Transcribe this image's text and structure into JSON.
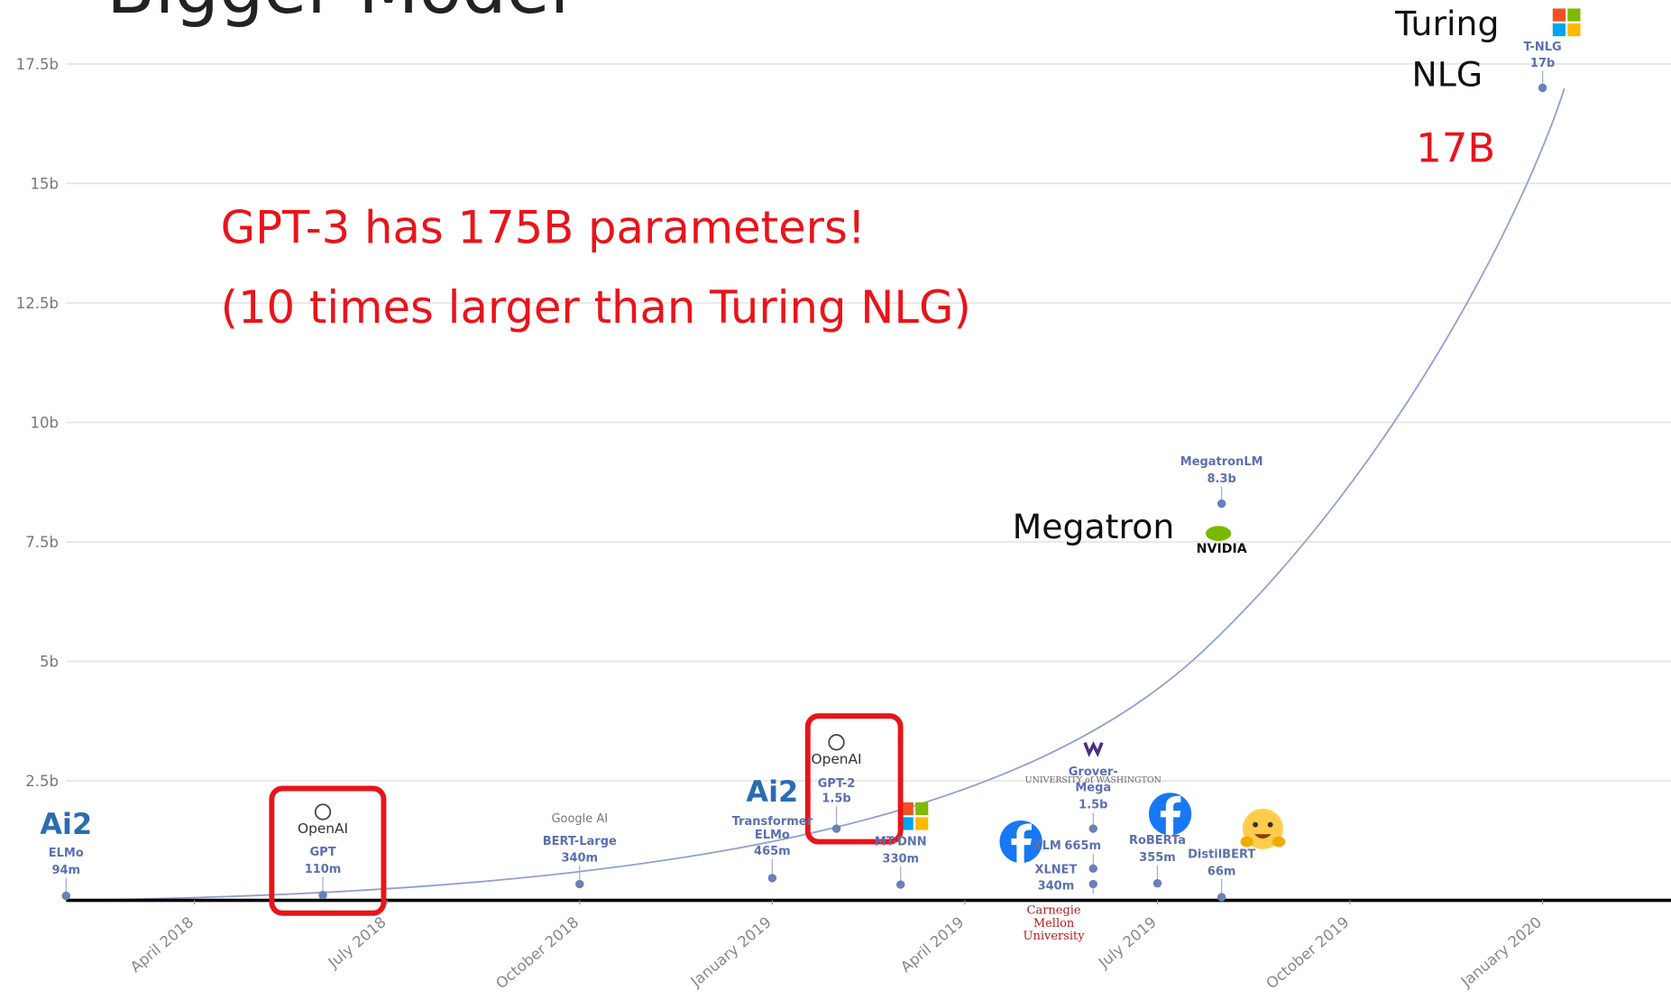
{
  "chart_data": {
    "type": "scatter",
    "title": "Bigger Model",
    "annotations": [
      "GPT-3 has 175B parameters!",
      "(10 times larger than Turing NLG)",
      "Turing",
      "NLG",
      "17B",
      "Megatron"
    ],
    "labels": [
      "ELMo",
      "GPT",
      "BERT-Large",
      "Transformer ELMo",
      "GPT-2",
      "MT-DNN",
      "XLM",
      "Grover-Mega",
      "XLNET",
      "RoBERTa",
      "DistilBERT",
      "MegatronLM",
      "T-NLG"
    ],
    "orgs": [
      "Ai2",
      "OpenAI",
      "Google AI",
      "Ai2",
      "OpenAI",
      null,
      null,
      "UNIVERSITY of WASHINGTON",
      "Carnegie Mellon University",
      null,
      null,
      "NVIDIA",
      null
    ],
    "x": [
      "2018-02",
      "2018-06",
      "2018-10",
      "2019-01",
      "2019-02",
      "2019-03",
      "2019-06",
      "2019-06",
      "2019-06",
      "2019-07",
      "2019-08",
      "2019-08",
      "2020-01"
    ],
    "values": [
      0.094,
      0.11,
      0.34,
      0.465,
      1.5,
      0.33,
      0.665,
      1.5,
      0.34,
      0.355,
      0.066,
      8.3,
      17
    ],
    "value_labels": [
      "94m",
      "110m",
      "340m",
      "465m",
      "1.5b",
      "330m",
      "665m",
      "1.5b",
      "340m",
      "355m",
      "66m",
      "8.3b",
      "17b"
    ],
    "color": "#6b7fb8",
    "xlim": [
      "2018-02",
      "2020-03"
    ],
    "xticks": [
      {
        "value": "2018-04",
        "label": "April 2018"
      },
      {
        "value": "2018-07",
        "label": "July 2018"
      },
      {
        "value": "2018-10",
        "label": "October 2018"
      },
      {
        "value": "2019-01",
        "label": "January 2019"
      },
      {
        "value": "2019-04",
        "label": "April 2019"
      },
      {
        "value": "2019-07",
        "label": "July 2019"
      },
      {
        "value": "2019-10",
        "label": "October 2019"
      },
      {
        "value": "2020-01",
        "label": "January 2020"
      }
    ],
    "ylim": [
      0,
      17.5
    ],
    "yticks": [
      {
        "value": 2.5,
        "label": "2.5b"
      },
      {
        "value": 5,
        "label": "5b"
      },
      {
        "value": 7.5,
        "label": "7.5b"
      },
      {
        "value": 10,
        "label": "10b"
      },
      {
        "value": 12.5,
        "label": "12.5b"
      },
      {
        "value": 15,
        "label": "15b"
      },
      {
        "value": 17.5,
        "label": "17.5b"
      }
    ],
    "grid": true
  }
}
